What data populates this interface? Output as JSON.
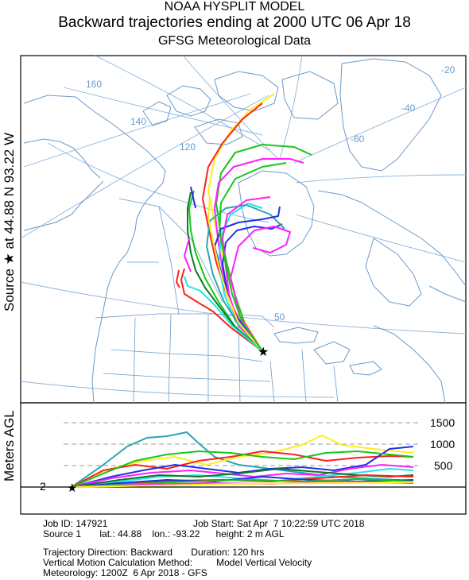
{
  "header": {
    "line1": "NOAA HYSPLIT MODEL",
    "line2": "Backward trajectories ending at 2000 UTC 06 Apr 18",
    "line3": "GFSG Meteorological Data"
  },
  "side": {
    "source_label": "Source ★ at  44.88 N   93.22 W",
    "agl_label": "Meters AGL"
  },
  "map": {
    "graticule_labels": [
      "160",
      "140",
      "120",
      "-20",
      "-40",
      "-60",
      "50"
    ],
    "source_marker": "star-icon",
    "colors": {
      "land_outline": "#6a9ac9",
      "graticule": "#8fb4d9",
      "traj_red": "#ff1f1f",
      "traj_blue": "#1f2fe8",
      "traj_green": "#19c619",
      "traj_cyan": "#1fe6e6",
      "traj_magenta": "#ff1fff",
      "traj_yellow": "#ffee1f",
      "traj_teal": "#2aa6b3",
      "traj_darkgreen": "#0b7a24"
    }
  },
  "height_panel": {
    "y_ticks": [
      "1500",
      "1000",
      "500"
    ],
    "start_height_label": "2"
  },
  "info": {
    "job_id": "Job ID: 147921",
    "job_start": "Job Start: Sat Apr  7 10:22:59 UTC 2018",
    "source": "Source 1       lat.: 44.88    lon.: -93.22      height: 2 m AGL",
    "direction": "Trajectory Direction: Backward       Duration: 120 hrs",
    "vertical": "Vertical Motion Calculation Method:         Model Vertical Velocity",
    "meteorology": "Meteorology: 1200Z  6 Apr 2018 - GFS"
  }
}
